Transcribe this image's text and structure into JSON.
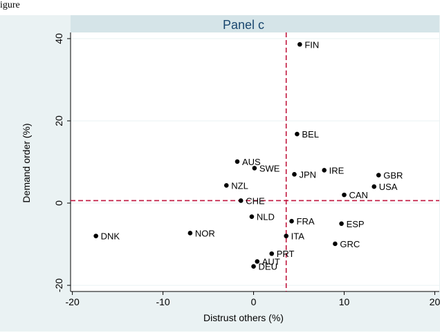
{
  "header_fragment": "igure",
  "chart_data": {
    "type": "scatter",
    "title": "Panel c",
    "xlabel": "Distrust others (%)",
    "ylabel": "Demand order (%)",
    "xlim": [
      -20.2,
      20.5
    ],
    "ylim": [
      -21.5,
      41.5
    ],
    "xticks": [
      -20,
      -10,
      0,
      10,
      20
    ],
    "xtick_labels": [
      "-20",
      "-10",
      "0",
      "10",
      "20"
    ],
    "yticks": [
      -20,
      0,
      20,
      40
    ],
    "ytick_labels": [
      "-20",
      "0",
      "20",
      "40"
    ],
    "grid": "horizontal",
    "reference_lines": {
      "x": 3.6,
      "y": 0.6,
      "color": "#c0143c",
      "style": "dashed"
    },
    "colors": {
      "outer": "#eaf2f3",
      "plot_bg": "#ffffff",
      "title_bar": "#d5e4e8",
      "grid": "#eaf2f3",
      "point": "#000000"
    },
    "points": [
      {
        "label": "FIN",
        "x": 5.1,
        "y": 38.6
      },
      {
        "label": "BEL",
        "x": 4.8,
        "y": 16.8
      },
      {
        "label": "AUS",
        "x": -1.8,
        "y": 10.1
      },
      {
        "label": "SWE",
        "x": 0.1,
        "y": 8.5
      },
      {
        "label": "IRE",
        "x": 7.8,
        "y": 8.0
      },
      {
        "label": "JPN",
        "x": 4.5,
        "y": 7.0
      },
      {
        "label": "GBR",
        "x": 13.8,
        "y": 6.8
      },
      {
        "label": "NZL",
        "x": -3.0,
        "y": 4.3
      },
      {
        "label": "USA",
        "x": 13.3,
        "y": 4.0
      },
      {
        "label": "CAN",
        "x": 10.0,
        "y": 2.0
      },
      {
        "label": "CHE",
        "x": -1.4,
        "y": 0.6
      },
      {
        "label": "NLD",
        "x": -0.2,
        "y": -3.3
      },
      {
        "label": "FRA",
        "x": 4.2,
        "y": -4.4
      },
      {
        "label": "ESP",
        "x": 9.7,
        "y": -5.0
      },
      {
        "label": "DNK",
        "x": -17.4,
        "y": -8.0
      },
      {
        "label": "NOR",
        "x": -7.0,
        "y": -7.3
      },
      {
        "label": "ITA",
        "x": 3.6,
        "y": -8.0
      },
      {
        "label": "GRC",
        "x": 9.0,
        "y": -9.9
      },
      {
        "label": "PRT",
        "x": 2.0,
        "y": -12.3
      },
      {
        "label": "AUT",
        "x": 0.4,
        "y": -14.2
      },
      {
        "label": "DEU",
        "x": 0.0,
        "y": -15.4
      }
    ]
  }
}
